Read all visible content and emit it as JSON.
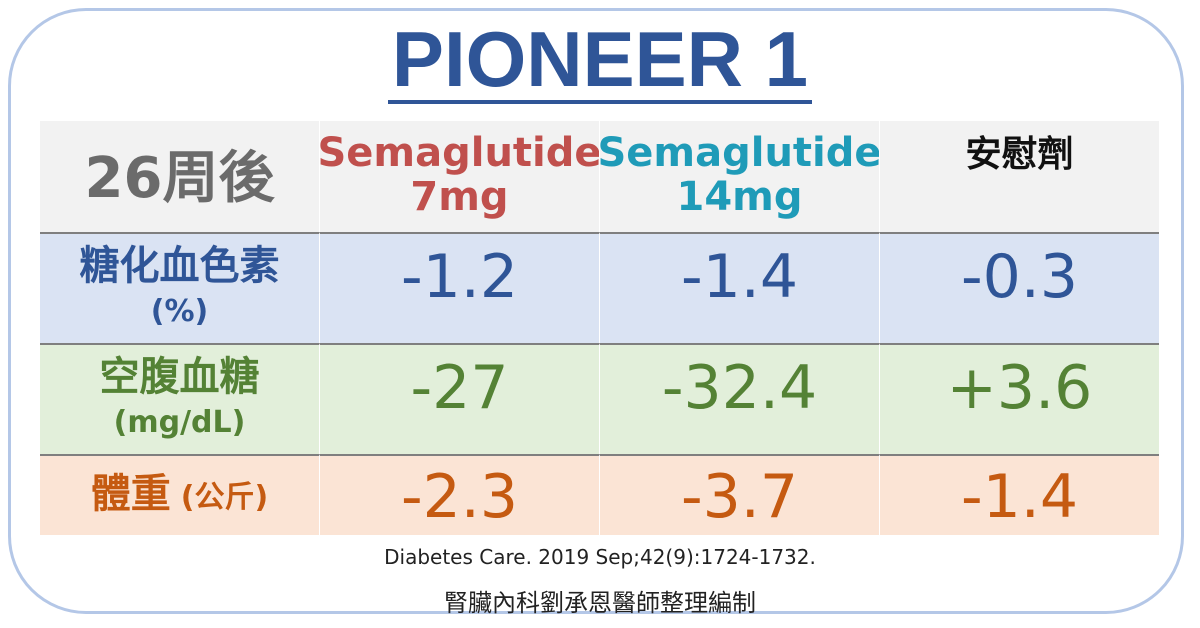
{
  "title": "PIONEER 1",
  "table": {
    "corner": "26周後",
    "columns": [
      {
        "name": "Semaglutide",
        "dose": "7mg"
      },
      {
        "name": "Semaglutide",
        "dose": "14mg"
      },
      {
        "name": "安慰劑",
        "dose": ""
      }
    ],
    "rows": [
      {
        "label": "糖化血色素",
        "unit": "(%)",
        "values": [
          "-1.2",
          "-1.4",
          "-0.3"
        ]
      },
      {
        "label": "空腹血糖",
        "unit": "(mg/dL)",
        "values": [
          "-27",
          "-32.4",
          "+3.6"
        ]
      },
      {
        "label": "體重",
        "unit": "(公斤)",
        "values": [
          "-2.3",
          "-3.7",
          "-1.4"
        ]
      }
    ]
  },
  "reference": "Diabetes Care. 2019 Sep;42(9):1724-1732.",
  "credit": "腎臟內科劉承恩醫師整理編制",
  "colors": {
    "title": "#2f5597",
    "col_7mg": "#c0504d",
    "col_14mg": "#1f9bb8",
    "row_hba1c_bg": "#dae3f3",
    "row_glucose_bg": "#e2efda",
    "row_weight_bg": "#fbe4d5",
    "frame": "#b4c7e7"
  }
}
